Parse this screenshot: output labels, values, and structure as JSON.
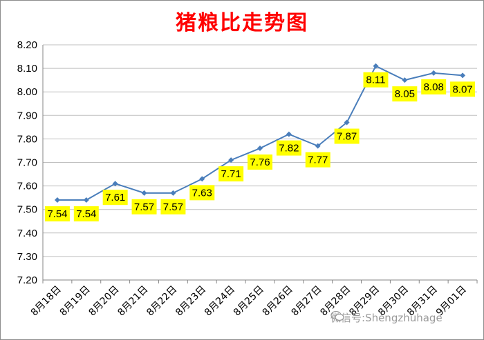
{
  "chart_data": {
    "type": "line",
    "title": "猪粮比走势图",
    "categories": [
      "8月18日",
      "8月19日",
      "8月20日",
      "8月21日",
      "8月22日",
      "8月23日",
      "8月24日",
      "8月25日",
      "8月26日",
      "8月27日",
      "8月28日",
      "8月29日",
      "8月30日",
      "8月31日",
      "9月01日"
    ],
    "values": [
      7.54,
      7.54,
      7.61,
      7.57,
      7.57,
      7.63,
      7.71,
      7.76,
      7.82,
      7.77,
      7.87,
      8.11,
      8.05,
      8.08,
      8.07
    ],
    "data_labels": [
      "7.54",
      "7.54",
      "7.61",
      "7.57",
      "7.57",
      "7.63",
      "7.71",
      "7.76",
      "7.82",
      "7.77",
      "7.87",
      "8.11",
      "8.05",
      "8.08",
      "8.07"
    ],
    "label_position": [
      "below",
      "below",
      "below",
      "below",
      "below",
      "below",
      "below",
      "below",
      "below",
      "below",
      "below",
      "below",
      "below",
      "below",
      "below"
    ],
    "y_ticks": [
      "8.20",
      "8.10",
      "8.00",
      "7.90",
      "7.80",
      "7.70",
      "7.60",
      "7.50",
      "7.40",
      "7.30",
      "7.20"
    ],
    "ylim": [
      7.2,
      8.2
    ],
    "grid": true,
    "xlabel": "",
    "ylabel": "",
    "colors": {
      "line": "#4a7ebb",
      "label_bg": "#ffff00",
      "title": "#ff0000"
    }
  },
  "watermark": {
    "text": "微信号:Shengzhuhage",
    "icon": "wechat-icon"
  }
}
